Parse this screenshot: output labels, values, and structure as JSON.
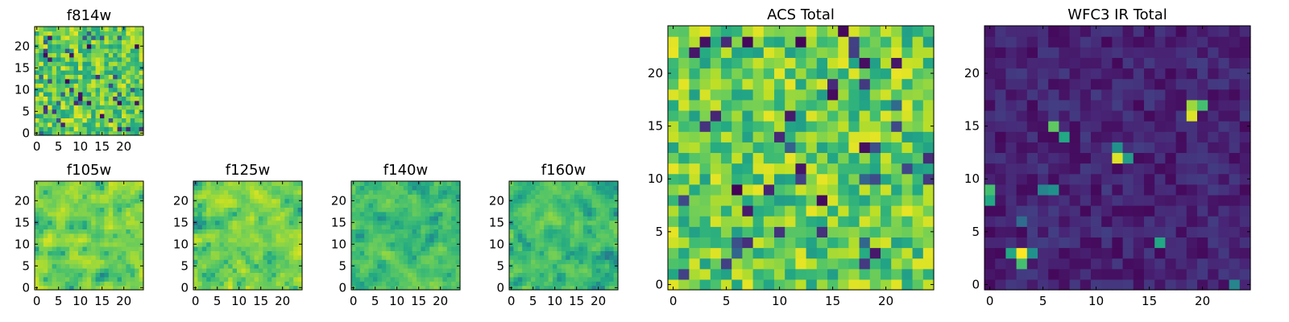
{
  "chart_data": [
    {
      "type": "heatmap",
      "title": "f814w",
      "colormap": "viridis",
      "grid_size": [
        25,
        25
      ],
      "x_ticks": [
        "0",
        "5",
        "10",
        "15",
        "20"
      ],
      "y_ticks": [
        "0",
        "5",
        "10",
        "15",
        "20"
      ],
      "xlim": [
        -0.5,
        24.5
      ],
      "ylim": [
        -0.5,
        24.5
      ],
      "value_profile": "mostly high (green–yellow), scattered low pixels",
      "grid": false
    },
    {
      "type": "heatmap",
      "title": "f105w",
      "colormap": "viridis",
      "grid_size": [
        25,
        25
      ],
      "x_ticks": [
        "0",
        "5",
        "10",
        "15",
        "20"
      ],
      "y_ticks": [
        "0",
        "5",
        "10",
        "15",
        "20"
      ],
      "xlim": [
        -0.5,
        24.5
      ],
      "ylim": [
        -0.5,
        24.5
      ],
      "value_profile": "smooth, mostly high",
      "grid": false
    },
    {
      "type": "heatmap",
      "title": "f125w",
      "colormap": "viridis",
      "grid_size": [
        25,
        25
      ],
      "x_ticks": [
        "0",
        "5",
        "10",
        "15",
        "20"
      ],
      "y_ticks": [
        "0",
        "5",
        "10",
        "15",
        "20"
      ],
      "xlim": [
        -0.5,
        24.5
      ],
      "ylim": [
        -0.5,
        24.5
      ],
      "value_profile": "smooth, mostly high",
      "grid": false
    },
    {
      "type": "heatmap",
      "title": "f140w",
      "colormap": "viridis",
      "grid_size": [
        25,
        25
      ],
      "x_ticks": [
        "0",
        "5",
        "10",
        "15",
        "20"
      ],
      "y_ticks": [
        "0",
        "5",
        "10",
        "15",
        "20"
      ],
      "xlim": [
        -0.5,
        24.5
      ],
      "ylim": [
        -0.5,
        24.5
      ],
      "value_profile": "smooth, medium–high",
      "grid": false
    },
    {
      "type": "heatmap",
      "title": "f160w",
      "colormap": "viridis",
      "grid_size": [
        25,
        25
      ],
      "x_ticks": [
        "0",
        "5",
        "10",
        "15",
        "20"
      ],
      "y_ticks": [
        "0",
        "5",
        "10",
        "15",
        "20"
      ],
      "xlim": [
        -0.5,
        24.5
      ],
      "ylim": [
        -0.5,
        24.5
      ],
      "value_profile": "smooth, medium–high",
      "grid": false
    },
    {
      "type": "heatmap",
      "title": "ACS Total",
      "colormap": "viridis",
      "grid_size": [
        25,
        25
      ],
      "x_ticks": [
        "0",
        "5",
        "10",
        "15",
        "20"
      ],
      "y_ticks": [
        "0",
        "5",
        "10",
        "15",
        "20"
      ],
      "xlim": [
        -0.5,
        24.5
      ],
      "ylim": [
        -0.5,
        24.5
      ],
      "value_profile": "mostly high, scattered low pixels",
      "grid": false
    },
    {
      "type": "heatmap",
      "title": "WFC3 IR Total",
      "colormap": "viridis",
      "grid_size": [
        25,
        25
      ],
      "x_ticks": [
        "0",
        "5",
        "10",
        "15",
        "20"
      ],
      "y_ticks": [
        "0",
        "5",
        "10",
        "15",
        "20"
      ],
      "xlim": [
        -0.5,
        24.5
      ],
      "ylim": [
        -0.5,
        24.5
      ],
      "value_profile": "mostly low (dark purple) with a few bright pixels",
      "grid": false
    }
  ]
}
